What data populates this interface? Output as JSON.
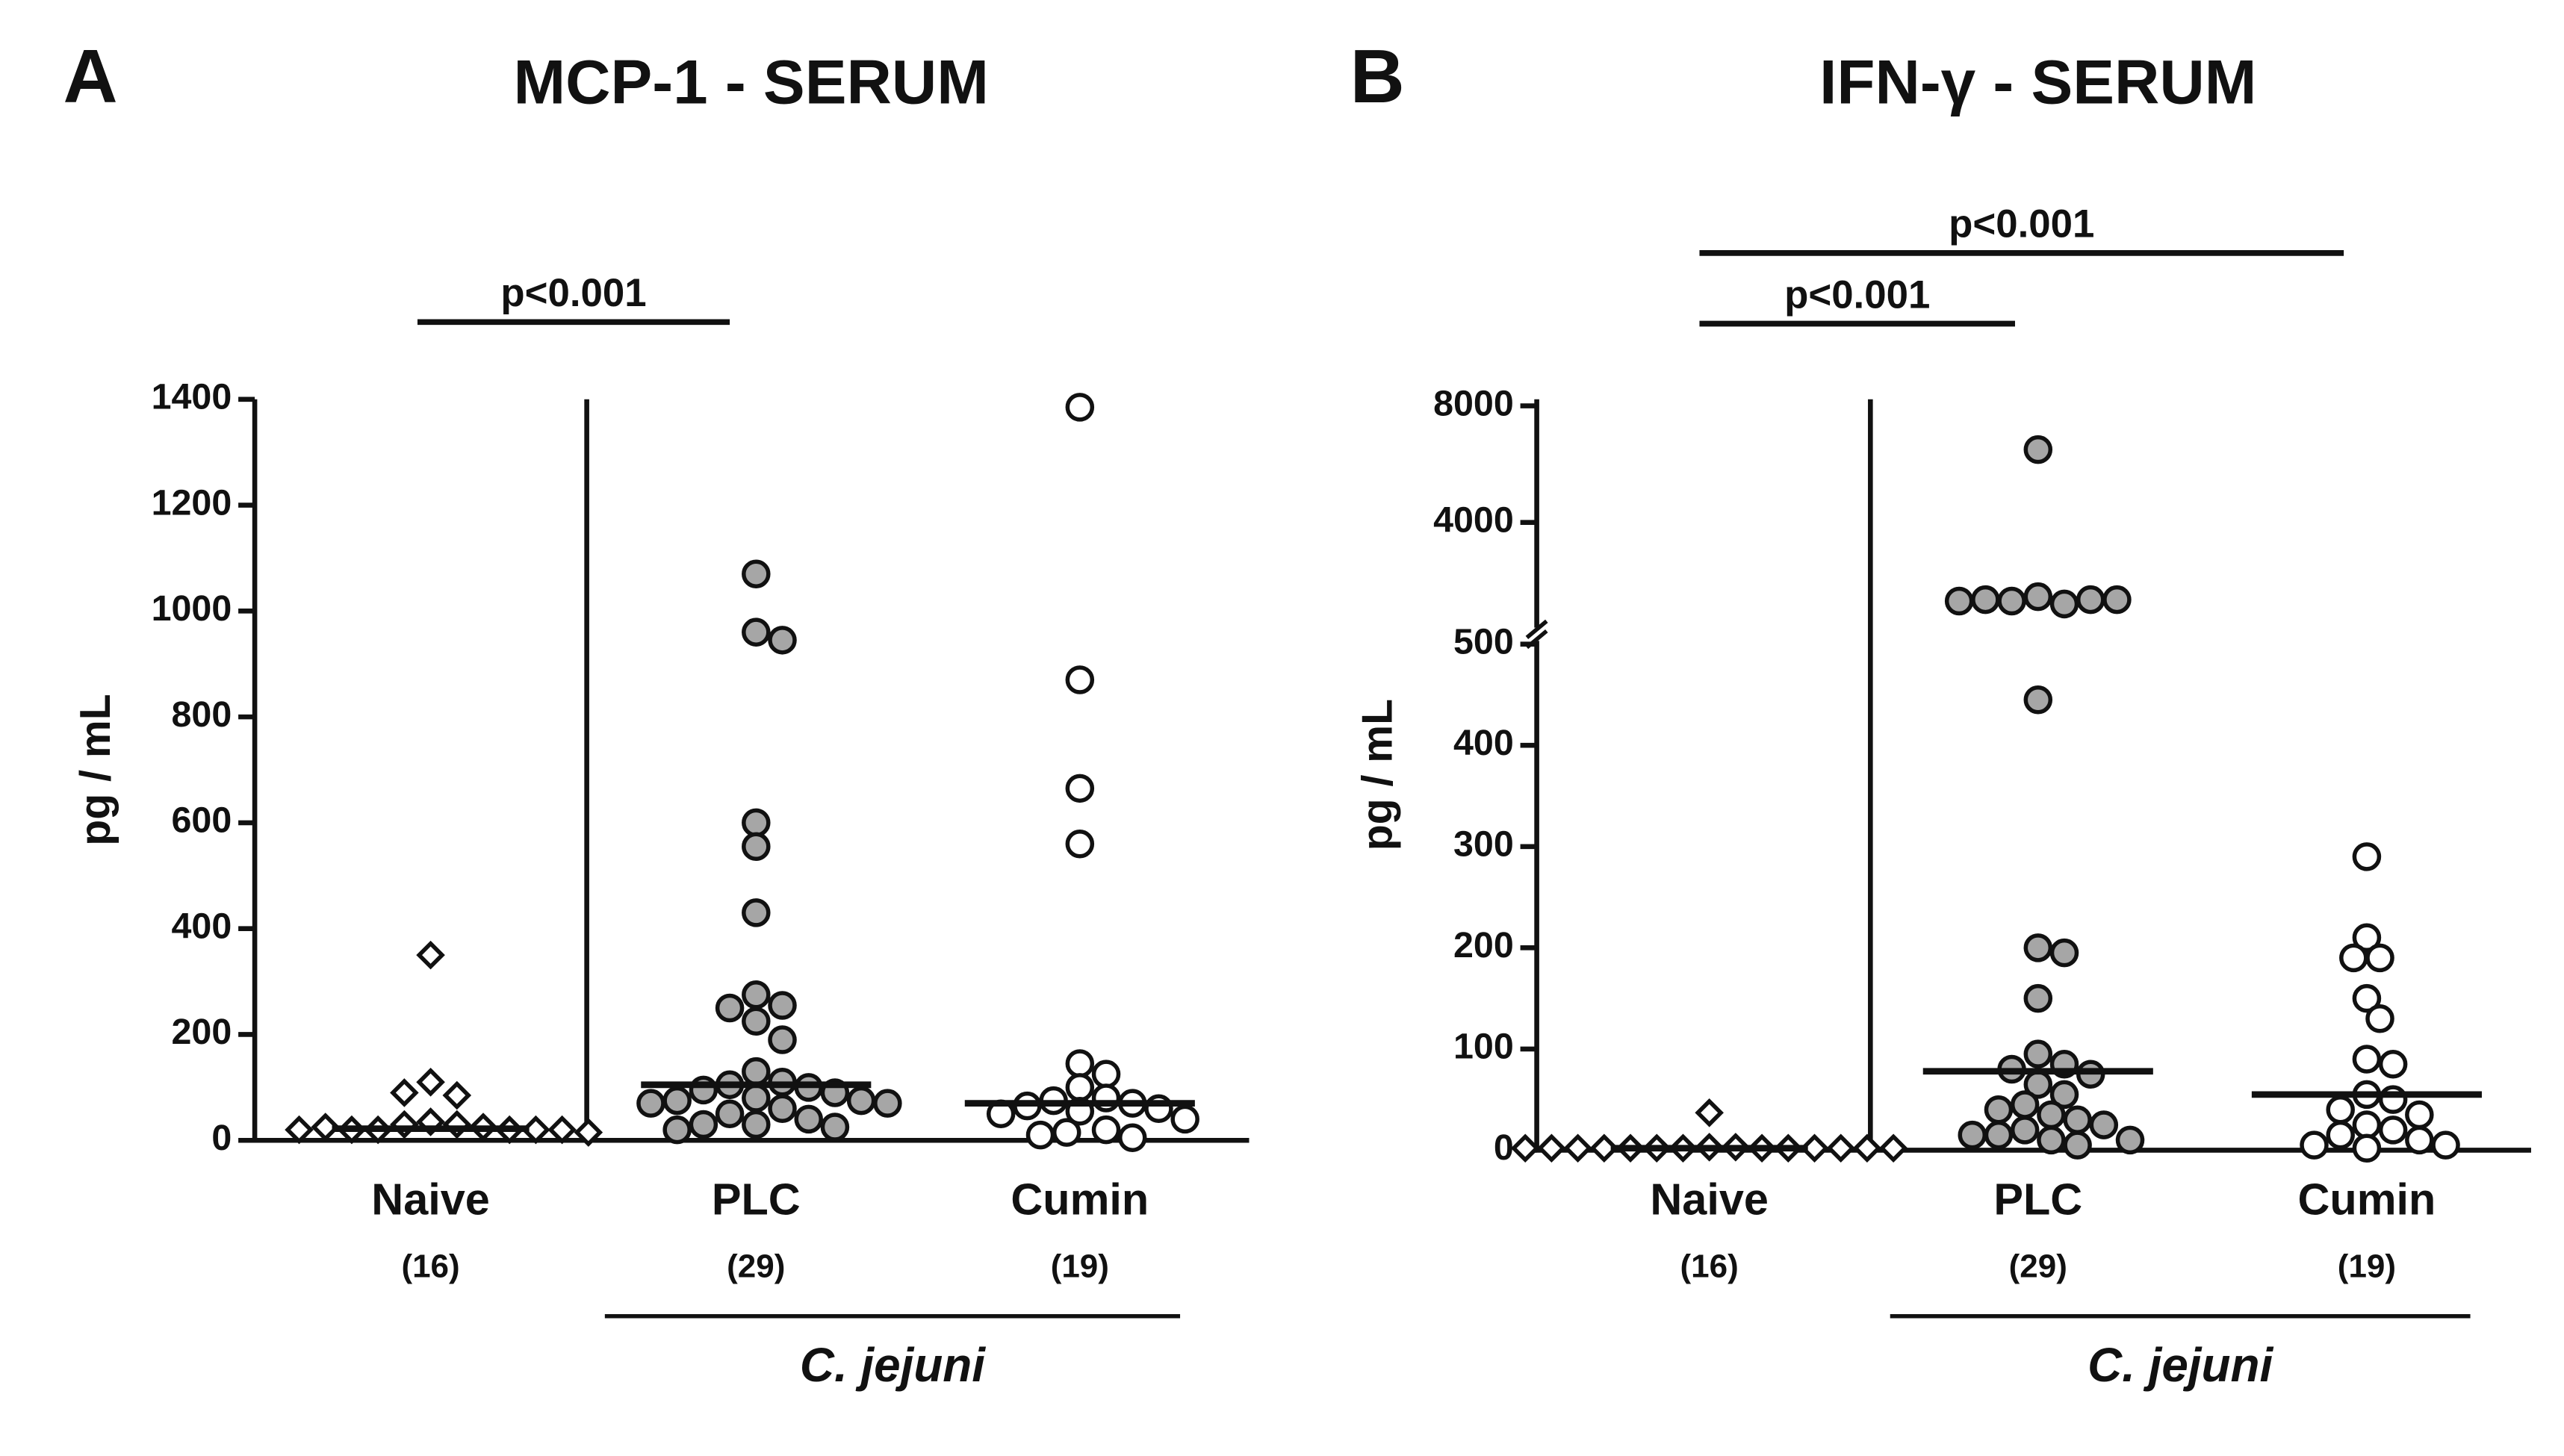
{
  "chart_data": [
    {
      "type": "strip",
      "panel": "A",
      "title": "MCP-1 - SERUM",
      "y_label": "pg / mL",
      "ylim": [
        0,
        1400
      ],
      "yticks": [
        0,
        200,
        400,
        600,
        800,
        1000,
        1200,
        1400
      ],
      "categories": [
        "Naive",
        "PLC",
        "Cumin"
      ],
      "counts": [
        "(16)",
        "(29)",
        "(19)"
      ],
      "colors": [
        "#ffffff",
        "#a6a6a6",
        "#ffffff"
      ],
      "markers": [
        "diamond",
        "circle",
        "circle"
      ],
      "values": [
        [
          350,
          110,
          85,
          90,
          35,
          30,
          30,
          25,
          20,
          20,
          20,
          20,
          25,
          20,
          20,
          15
        ],
        [
          1070,
          960,
          945,
          600,
          555,
          430,
          275,
          255,
          250,
          225,
          190,
          130,
          110,
          105,
          100,
          95,
          90,
          80,
          75,
          75,
          70,
          70,
          60,
          50,
          40,
          30,
          30,
          25,
          20
        ],
        [
          1385,
          870,
          665,
          560,
          145,
          125,
          100,
          80,
          75,
          70,
          65,
          60,
          55,
          50,
          40,
          20,
          15,
          10,
          5
        ]
      ],
      "medians": [
        22,
        105,
        70
      ],
      "group": {
        "label": "C. jejuni",
        "members": [
          "PLC",
          "Cumin"
        ]
      },
      "comparisons": [
        {
          "from": "Naive",
          "to": "PLC",
          "label": "p<0.001"
        }
      ]
    },
    {
      "type": "strip",
      "panel": "B",
      "title": "IFN-γ - SERUM",
      "y_label": "pg / mL",
      "ylim": [
        0,
        8000
      ],
      "yticks": [
        0,
        100,
        200,
        300,
        400,
        500,
        4000,
        8000
      ],
      "axis_break": 500,
      "categories": [
        "Naive",
        "PLC",
        "Cumin"
      ],
      "counts": [
        "(16)",
        "(29)",
        "(19)"
      ],
      "colors": [
        "#ffffff",
        "#a6a6a6",
        "#ffffff"
      ],
      "markers": [
        "diamond",
        "circle",
        "circle"
      ],
      "values": [
        [
          37,
          3,
          3,
          2,
          2,
          2,
          2,
          2,
          2,
          2,
          2,
          2,
          2,
          2,
          2,
          2
        ],
        [
          6500,
          1450,
          1200,
          1300,
          1350,
          1350,
          1350,
          1300,
          445,
          200,
          195,
          150,
          95,
          85,
          80,
          75,
          65,
          55,
          45,
          40,
          35,
          30,
          25,
          20,
          15,
          15,
          10,
          10,
          5
        ],
        [
          290,
          210,
          190,
          190,
          150,
          130,
          90,
          85,
          55,
          50,
          40,
          35,
          25,
          20,
          15,
          10,
          5,
          5,
          2
        ]
      ],
      "medians": [
        2,
        78,
        55
      ],
      "group": {
        "label": "C. jejuni",
        "members": [
          "PLC",
          "Cumin"
        ]
      },
      "comparisons": [
        {
          "from": "Naive",
          "to": "PLC",
          "label": "p<0.001"
        },
        {
          "from": "Naive",
          "to": "Cumin",
          "label": "p<0.001"
        }
      ]
    }
  ]
}
